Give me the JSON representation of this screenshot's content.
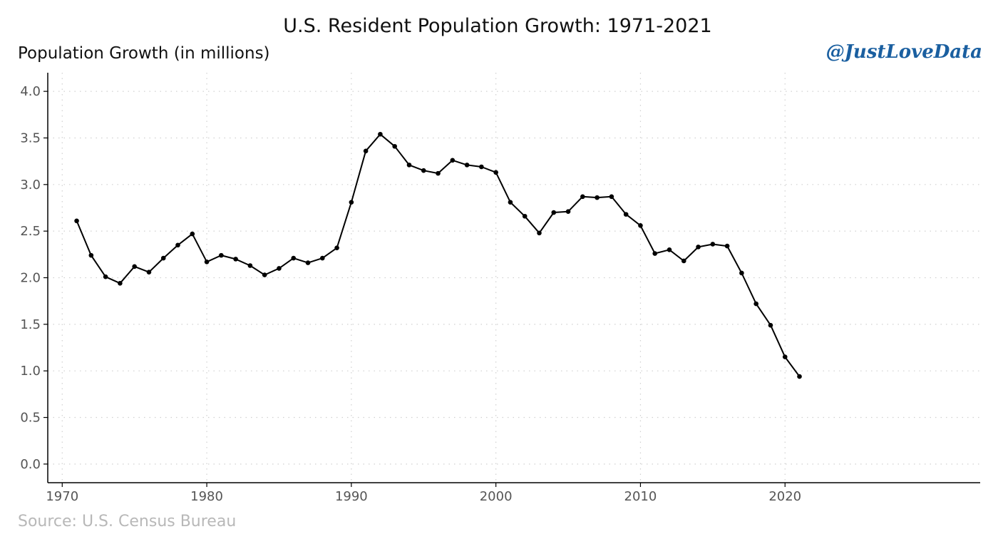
{
  "chart_data": {
    "type": "line",
    "title": "U.S. Resident Population Growth: 1971-2021",
    "ylabel": "Population Growth (in millions)",
    "xlabel": "",
    "source": "Source: U.S. Census Bureau",
    "watermark": "@JustLoveData",
    "xlim": [
      1969,
      2033.5
    ],
    "ylim": [
      -0.2,
      4.2
    ],
    "x_ticks": [
      1970,
      1980,
      1990,
      2000,
      2010,
      2020
    ],
    "y_ticks": [
      "0.0",
      "0.5",
      "1.0",
      "1.5",
      "2.0",
      "2.5",
      "3.0",
      "3.5",
      "4.0"
    ],
    "grid": true,
    "legend": "none",
    "colors": {
      "line": "#000000",
      "grid": "#d0d0d0",
      "axis": "#000000",
      "watermark": "#1a5fa0"
    },
    "x": [
      1971,
      1972,
      1973,
      1974,
      1975,
      1976,
      1977,
      1978,
      1979,
      1980,
      1981,
      1982,
      1983,
      1984,
      1985,
      1986,
      1987,
      1988,
      1989,
      1990,
      1991,
      1992,
      1993,
      1994,
      1995,
      1996,
      1997,
      1998,
      1999,
      2000,
      2001,
      2002,
      2003,
      2004,
      2005,
      2006,
      2007,
      2008,
      2009,
      2010,
      2011,
      2012,
      2013,
      2014,
      2015,
      2016,
      2017,
      2018,
      2019,
      2020,
      2021
    ],
    "series": [
      {
        "values": [
          2.61,
          2.24,
          2.01,
          1.94,
          2.12,
          2.06,
          2.21,
          2.35,
          2.47,
          2.17,
          2.24,
          2.2,
          2.13,
          2.03,
          2.1,
          2.21,
          2.16,
          2.21,
          2.32,
          2.81,
          3.36,
          3.54,
          3.41,
          3.21,
          3.15,
          3.12,
          3.26,
          3.21,
          3.19,
          3.13,
          2.81,
          2.66,
          2.48,
          2.7,
          2.71,
          2.87,
          2.86,
          2.87,
          2.68,
          2.56,
          2.26,
          2.3,
          2.18,
          2.33,
          2.36,
          2.34,
          2.05,
          1.72,
          1.49,
          1.15,
          0.94
        ]
      }
    ]
  }
}
